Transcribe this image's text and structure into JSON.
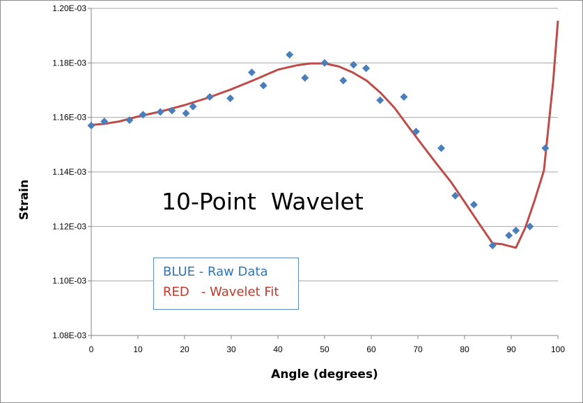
{
  "chart_data": {
    "type": "scatter",
    "title": "10-Point  Wavelet",
    "xlabel": "Angle (degrees)",
    "ylabel": "Strain",
    "xlim": [
      0,
      100
    ],
    "ylim": [
      0.00108,
      0.0012
    ],
    "x_ticks": [
      0,
      10,
      20,
      30,
      40,
      50,
      60,
      70,
      80,
      90,
      100
    ],
    "y_ticks": [
      0.00108,
      0.0011,
      0.00112,
      0.00114,
      0.00116,
      0.00118,
      0.0012
    ],
    "x_tick_labels": [
      "0",
      "10",
      "20",
      "30",
      "40",
      "50",
      "60",
      "70",
      "80",
      "90",
      "100"
    ],
    "y_tick_labels": [
      "1.08E-03",
      "1.10E-03",
      "1.12E-03",
      "1.14E-03",
      "1.16E-03",
      "1.18E-03",
      "1.20E-03"
    ],
    "grid": {
      "horizontal": true,
      "vertical": false
    },
    "legend_text": {
      "blue": "BLUE - Raw Data",
      "red": "RED   - Wavelet Fit"
    },
    "colors": {
      "raw": "#4a7ebb",
      "fit": "#be4b48",
      "grid": "#a6a6a6",
      "legend_border": "#5b8bc4",
      "legend_blue": "#2e75b6",
      "legend_red": "#c0392b"
    },
    "series": [
      {
        "kind": "markers",
        "x": [
          0,
          2.8,
          8.2,
          11.1,
          14.8,
          17.3,
          20.3,
          21.8,
          25.4,
          29.8,
          34.4,
          36.9,
          42.5,
          45.8,
          50.0,
          54.0,
          56.2,
          58.9,
          61.9,
          67.0,
          69.6,
          75.0,
          78.0,
          82.0,
          86.0,
          89.5,
          91.0,
          94.0,
          97.3
        ],
        "y": [
          0.001157,
          0.0011585,
          0.001159,
          0.001161,
          0.001162,
          0.0011625,
          0.0011615,
          0.001164,
          0.0011675,
          0.001167,
          0.0011765,
          0.0011717,
          0.001183,
          0.0011745,
          0.00118,
          0.0011735,
          0.0011793,
          0.001178,
          0.0011663,
          0.0011675,
          0.0011548,
          0.0011487,
          0.0011313,
          0.001128,
          0.001113,
          0.0011167,
          0.0011185,
          0.00112,
          0.0011487
        ]
      },
      {
        "kind": "line",
        "x": [
          0,
          3,
          6,
          10,
          15,
          20,
          25,
          30,
          35,
          40,
          44,
          47,
          50,
          53,
          56,
          59,
          62,
          65,
          68,
          71,
          74,
          77,
          80,
          83,
          86,
          88,
          91,
          93,
          95,
          97,
          99,
          100
        ],
        "y": [
          0.0011572,
          0.0011577,
          0.0011585,
          0.0011603,
          0.0011622,
          0.0011645,
          0.0011672,
          0.0011703,
          0.0011738,
          0.0011775,
          0.0011791,
          0.0011798,
          0.0011798,
          0.0011787,
          0.0011765,
          0.0011735,
          0.001169,
          0.0011635,
          0.0011565,
          0.0011497,
          0.001143,
          0.0011365,
          0.001129,
          0.0011213,
          0.0011138,
          0.0011135,
          0.0011122,
          0.0011195,
          0.0011295,
          0.0011405,
          0.0011735,
          0.0011955
        ]
      }
    ]
  }
}
